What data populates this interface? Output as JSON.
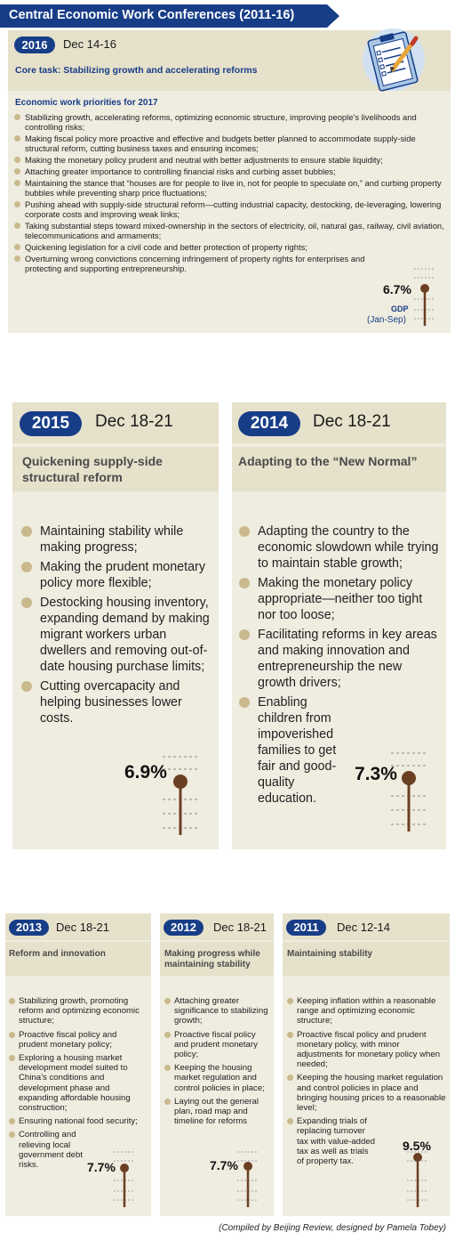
{
  "title": "Central Economic Work Conferences (2011-16)",
  "c2016": {
    "year": "2016",
    "date": "Dec 14-16",
    "core_task": "Core task: Stabilizing growth and accelerating reforms",
    "priorities_heading": "Economic work priorities for 2017",
    "items": [
      "Stabilizing growth, accelerating reforms, optimizing economic structure, improving people’s livelihoods and controlling risks;",
      "Making fiscal policy more proactive and effective and budgets better planned to accommodate supply-side structural reform, cutting business taxes and ensuring incomes;",
      "Making the monetary policy prudent and neutral with better adjustments to ensure stable liquidity;",
      "Attaching greater importance to controlling financial risks and curbing asset bubbles;",
      "Maintaining the stance that “houses are for people to live in, not for people to speculate on,” and curbing property bubbles while preventing sharp price fluctuations;",
      "Pushing ahead with supply-side structural reform—cutting industrial capacity, destocking, de-leveraging, lowering corporate costs and improving weak links;",
      "Taking substantial steps toward mixed-ownership in the sectors of electricity, oil, natural gas, railway, civil aviation, telecommunications and armaments;",
      "Quickening legislation for a civil code and better protection of property rights;",
      "Overturning wrong convictions concerning infringement of property rights for enterprises and protecting and supporting entrepreneurship."
    ],
    "gdp": "6.7%",
    "gdp_label": "GDP",
    "gdp_period": "(Jan-Sep)"
  },
  "c2015": {
    "year": "2015",
    "date": "Dec 18-21",
    "subtitle": "Quickening supply-side structural reform",
    "items": [
      "Maintaining stability while making progress;",
      "Making the prudent monetary policy more flexible;",
      "Destocking housing inventory, expanding demand by making migrant workers urban dwellers and removing out-of-date housing purchase limits;",
      "Cutting overcapacity and helping businesses lower costs."
    ],
    "gdp": "6.9%"
  },
  "c2014": {
    "year": "2014",
    "date": "Dec 18-21",
    "subtitle": "Adapting to the “New Normal”",
    "items": [
      "Adapting the country to the economic slowdown while trying to maintain stable growth;",
      "Making the monetary policy appropriate—neither too tight nor too loose;",
      "Facilitating reforms in key areas and making innovation and entrepreneurship the new growth drivers;",
      "Enabling children from impoverished families to get fair and good-quality education."
    ],
    "gdp": "7.3%"
  },
  "c2013": {
    "year": "2013",
    "date": "Dec 18-21",
    "subtitle": "Reform and innovation",
    "items": [
      "Stabilizing growth, promoting reform and optimizing economic structure;",
      "Proactive fiscal policy and prudent monetary policy;",
      "Exploring a housing market development model suited to China’s conditions and development phase and expanding affordable housing construction;",
      "Ensuring national food security;",
      "Controlling and relieving local government debt risks."
    ],
    "gdp": "7.7%"
  },
  "c2012": {
    "year": "2012",
    "date": "Dec 18-21",
    "subtitle": "Making progress while maintaining stability",
    "items": [
      "Attaching greater significance to stabilizing growth;",
      "Proactive fiscal policy and prudent monetary policy;",
      "Keeping the housing market regulation and control policies in place;",
      "Laying out the general plan, road map and timeline for reforms"
    ],
    "gdp": "7.7%"
  },
  "c2011": {
    "year": "2011",
    "date": "Dec 12-14",
    "subtitle": "Maintaining stability",
    "items": [
      "Keeping inflation within a reasonable range and optimizing economic structure;",
      "Proactive fiscal policy and prudent monetary policy, with minor adjustments for monetary policy when needed;",
      "Keeping the housing market regulation and control policies in place and bringing housing prices to a reasonable level;",
      "Expanding trials of replacing turnover tax with value-added tax as well as trials of property tax."
    ],
    "gdp": "9.5%"
  },
  "credit": "(Compiled by Beijing Review, designed by Pamela Tobey)",
  "colors": {
    "navy": "#173d87",
    "panel": "#efece0",
    "band": "#e6e1cb",
    "bullet": "#c9b98c",
    "meter": "#6b3f22"
  }
}
